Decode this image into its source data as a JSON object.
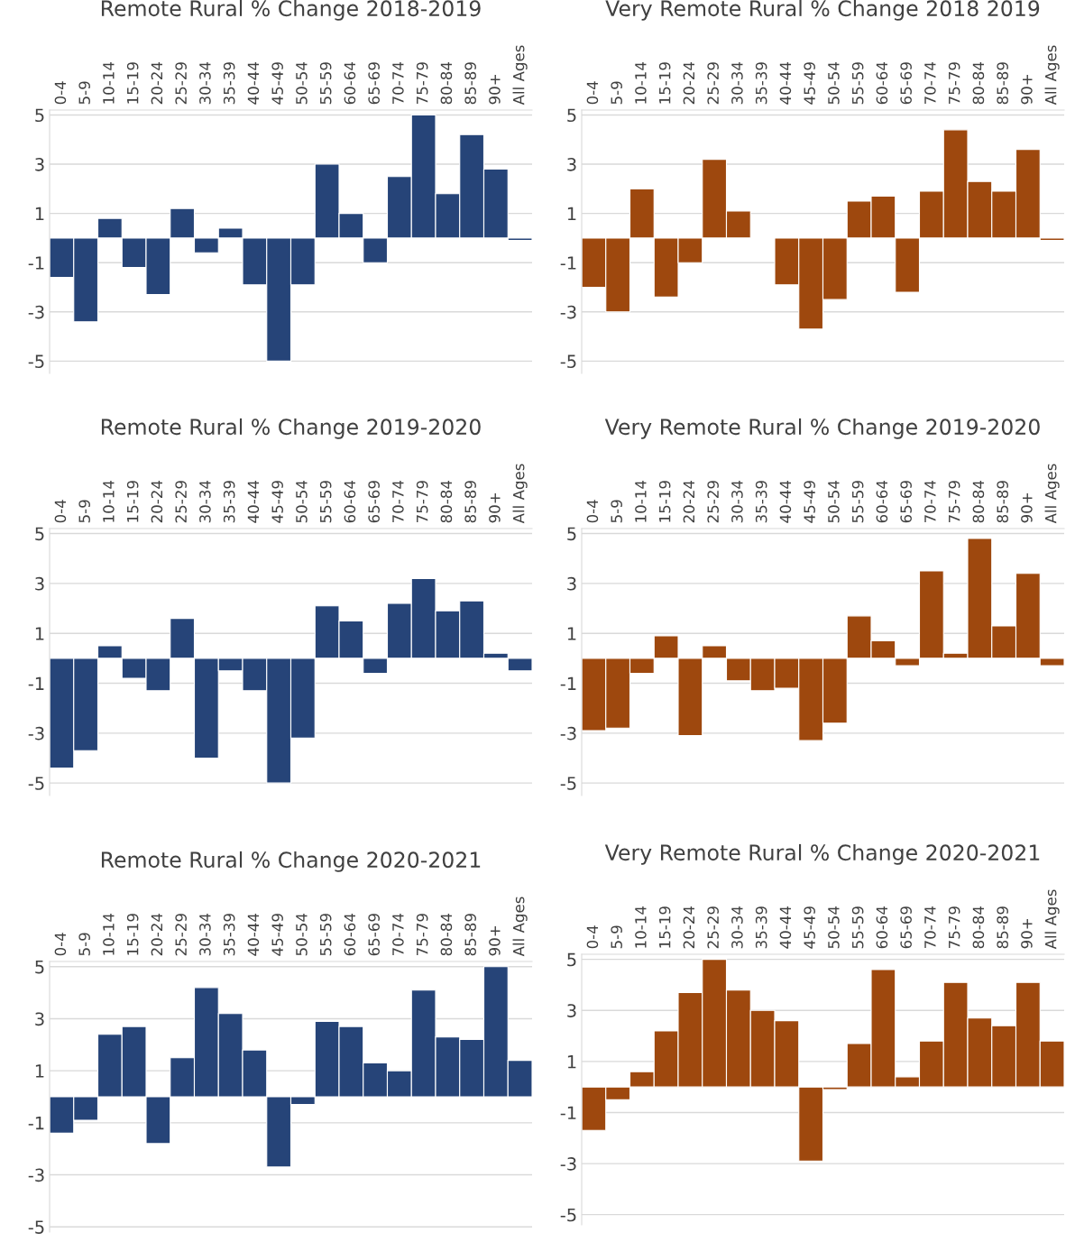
{
  "chart_data": [
    {
      "type": "bar",
      "title": "Remote Rural % Change 2018-2019",
      "categories": [
        "0-4",
        "5-9",
        "10-14",
        "15-19",
        "20-24",
        "25-29",
        "30-34",
        "35-39",
        "40-44",
        "45-49",
        "50-54",
        "55-59",
        "60-64",
        "65-69",
        "70-74",
        "75-79",
        "80-84",
        "85-89",
        "90+",
        "All Ages"
      ],
      "series": [
        {
          "color": "#264478",
          "values": [
            -1.6,
            -3.4,
            0.8,
            -1.2,
            -2.3,
            1.2,
            -0.6,
            0.4,
            -1.9,
            -5.0,
            -1.9,
            3.0,
            1.0,
            -1.0,
            2.5,
            5.0,
            1.8,
            4.2,
            2.8,
            -0.1
          ]
        }
      ],
      "ylim": [
        -5.5,
        5.2
      ],
      "yticks": [
        -5,
        -3,
        -1,
        1,
        3,
        5
      ],
      "grid": "y"
    },
    {
      "type": "bar",
      "title": "Very Remote Rural % Change 2018 2019",
      "categories": [
        "0-4",
        "5-9",
        "10-14",
        "15-19",
        "20-24",
        "25-29",
        "30-34",
        "35-39",
        "40-44",
        "45-49",
        "50-54",
        "55-59",
        "60-64",
        "65-69",
        "70-74",
        "75-79",
        "80-84",
        "85-89",
        "90+",
        "All Ages"
      ],
      "series": [
        {
          "color": "#9e480e",
          "values": [
            -2.0,
            -3.0,
            2.0,
            -2.4,
            -1.0,
            3.2,
            1.1,
            null,
            -1.9,
            -3.7,
            -2.5,
            1.5,
            1.7,
            -2.2,
            1.9,
            4.4,
            2.3,
            1.9,
            3.6,
            -0.1
          ]
        }
      ],
      "ylim": [
        -5.5,
        5.2
      ],
      "yticks": [
        -5,
        -3,
        -1,
        1,
        3,
        5
      ],
      "grid": "y"
    },
    {
      "type": "bar",
      "title": "Remote Rural % Change 2019-2020",
      "categories": [
        "0-4",
        "5-9",
        "10-14",
        "15-19",
        "20-24",
        "25-29",
        "30-34",
        "35-39",
        "40-44",
        "45-49",
        "50-54",
        "55-59",
        "60-64",
        "65-69",
        "70-74",
        "75-79",
        "80-84",
        "85-89",
        "90+",
        "All Ages"
      ],
      "series": [
        {
          "color": "#264478",
          "values": [
            -4.4,
            -3.7,
            0.5,
            -0.8,
            -1.3,
            1.6,
            -4.0,
            -0.5,
            -1.3,
            -5.0,
            -3.2,
            2.1,
            1.5,
            -0.6,
            2.2,
            3.2,
            1.9,
            2.3,
            0.2,
            -0.5
          ]
        }
      ],
      "ylim": [
        -5.5,
        5.2
      ],
      "yticks": [
        -5,
        -3,
        -1,
        1,
        3,
        5
      ],
      "grid": "y"
    },
    {
      "type": "bar",
      "title": "Very Remote Rural % Change 2019-2020",
      "categories": [
        "0-4",
        "5-9",
        "10-14",
        "15-19",
        "20-24",
        "25-29",
        "30-34",
        "35-39",
        "40-44",
        "45-49",
        "50-54",
        "55-59",
        "60-64",
        "65-69",
        "70-74",
        "75-79",
        "80-84",
        "85-89",
        "90+",
        "All Ages"
      ],
      "series": [
        {
          "color": "#9e480e",
          "values": [
            -2.9,
            -2.8,
            -0.6,
            0.9,
            -3.1,
            0.5,
            -0.9,
            -1.3,
            -1.2,
            -3.3,
            -2.6,
            1.7,
            0.7,
            -0.3,
            3.5,
            0.2,
            4.8,
            1.3,
            3.4,
            -0.3
          ]
        }
      ],
      "ylim": [
        -5.5,
        5.2
      ],
      "yticks": [
        -5,
        -3,
        -1,
        1,
        3,
        5
      ],
      "grid": "y"
    },
    {
      "type": "bar",
      "title": "Remote Rural % Change 2020-2021",
      "categories": [
        "0-4",
        "5-9",
        "10-14",
        "15-19",
        "20-24",
        "25-29",
        "30-34",
        "35-39",
        "40-44",
        "45-49",
        "50-54",
        "55-59",
        "60-64",
        "65-69",
        "70-74",
        "75-79",
        "80-84",
        "85-89",
        "90+",
        "All Ages"
      ],
      "series": [
        {
          "color": "#264478",
          "values": [
            -1.4,
            -0.9,
            2.4,
            2.7,
            -1.8,
            1.5,
            4.2,
            3.2,
            1.8,
            -2.7,
            -0.3,
            2.9,
            2.7,
            1.3,
            1.0,
            4.1,
            2.3,
            2.2,
            5.0,
            1.4
          ]
        }
      ],
      "ylim": [
        -5.2,
        5.2
      ],
      "yticks": [
        -5,
        -3,
        -1,
        1,
        3,
        5
      ],
      "grid": "y"
    },
    {
      "type": "bar",
      "title": "Very Remote Rural % Change 2020-2021",
      "categories": [
        "0-4",
        "5-9",
        "10-14",
        "15-19",
        "20-24",
        "25-29",
        "30-34",
        "35-39",
        "40-44",
        "45-49",
        "50-54",
        "55-59",
        "60-64",
        "65-69",
        "70-74",
        "75-79",
        "80-84",
        "85-89",
        "90+",
        "All Ages"
      ],
      "series": [
        {
          "color": "#9e480e",
          "values": [
            -1.7,
            -0.5,
            0.6,
            2.2,
            3.7,
            5.0,
            3.8,
            3.0,
            2.6,
            -2.9,
            -0.1,
            1.7,
            4.6,
            0.4,
            1.8,
            4.1,
            2.7,
            2.4,
            4.1,
            1.8
          ]
        }
      ],
      "ylim": [
        -5.4,
        5.2
      ],
      "yticks": [
        -5,
        -3,
        -1,
        1,
        3,
        5
      ],
      "grid": "y"
    }
  ]
}
